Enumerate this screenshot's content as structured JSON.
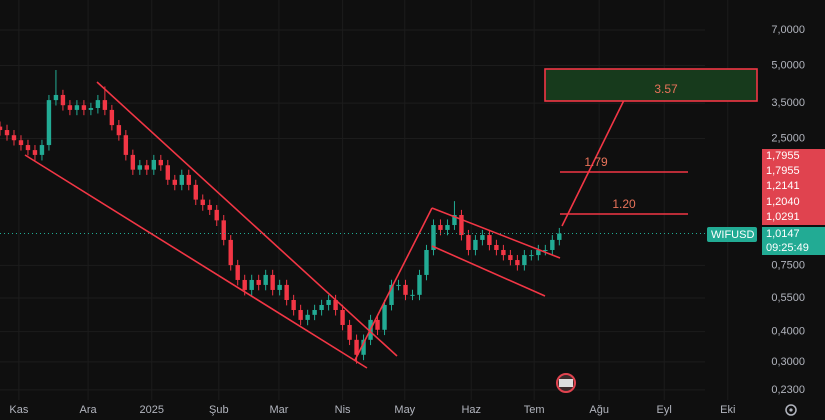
{
  "chart_data": {
    "type": "candlestick",
    "symbol": "WIFUSD",
    "log_scale": true,
    "grid": true,
    "up_color": "#22ab94",
    "down_color": "#f23645",
    "xlim": [
      0,
      118
    ],
    "xticks": [
      {
        "value": 2.7,
        "label": "Kas"
      },
      {
        "value": 12.6,
        "label": "Ara"
      },
      {
        "value": 21.7,
        "label": "2025"
      },
      {
        "value": 31.3,
        "label": "Şub"
      },
      {
        "value": 39.9,
        "label": "Mar"
      },
      {
        "value": 49,
        "label": "Nis"
      },
      {
        "value": 57.9,
        "label": "May"
      },
      {
        "value": 67.4,
        "label": "Haz"
      },
      {
        "value": 76.4,
        "label": "Tem"
      },
      {
        "value": 85.7,
        "label": "Ağu"
      },
      {
        "value": 95,
        "label": "Eyl"
      },
      {
        "value": 104.1,
        "label": "Eki"
      }
    ],
    "ylim": [
      0.209,
      9.31
    ],
    "yticks": [
      {
        "value": 7,
        "label": "7,0000"
      },
      {
        "value": 5,
        "label": "5,0000"
      },
      {
        "value": 3.5,
        "label": "3,5000"
      },
      {
        "value": 2.5,
        "label": "2,5000"
      },
      {
        "value": 0.75,
        "label": "0,7500"
      },
      {
        "value": 0.55,
        "label": "0,5500"
      },
      {
        "value": 0.4,
        "label": "0,4000"
      },
      {
        "value": 0.3,
        "label": "0,3000"
      },
      {
        "value": 0.23,
        "label": "0,2300"
      }
    ],
    "open": [
      2.8,
      2.71,
      2.58,
      2.46,
      2.35,
      2.24,
      2.14,
      2.35,
      3.6,
      3.78,
      3.43,
      3.28,
      3.43,
      3.28,
      3.34,
      3.6,
      3.28,
      2.84,
      2.58,
      2.14,
      1.86,
      1.94,
      1.86,
      2.04,
      1.94,
      1.69,
      1.61,
      1.77,
      1.61,
      1.4,
      1.33,
      1.27,
      1.15,
      0.955,
      0.752,
      0.653,
      0.594,
      0.653,
      0.623,
      0.685,
      0.594,
      0.623,
      0.54,
      0.491,
      0.447,
      0.469,
      0.491,
      0.515,
      0.54,
      0.491,
      0.426,
      0.37,
      0.321,
      0.37,
      0.447,
      0.407,
      0.515,
      0.623,
      0.623,
      0.567,
      0.567,
      0.685,
      0.868,
      1.1,
      1.05,
      1.1,
      1.21,
      1.0,
      0.868,
      0.955,
      1.0,
      0.91,
      0.868,
      0.827,
      0.789,
      0.752,
      0.827,
      0.827,
      0.868,
      0.868,
      0.955
    ],
    "high": [
      2.94,
      2.85,
      2.71,
      2.58,
      2.47,
      2.35,
      2.47,
      3.78,
      4.79,
      3.97,
      3.6,
      3.6,
      3.6,
      3.51,
      3.78,
      4.1,
      3.44,
      2.98,
      2.71,
      2.25,
      2.04,
      2.04,
      2.14,
      2.14,
      2.04,
      1.77,
      1.86,
      1.86,
      1.69,
      1.47,
      1.4,
      1.33,
      1.21,
      1.0,
      0.79,
      0.686,
      0.686,
      0.686,
      0.719,
      0.719,
      0.654,
      0.654,
      0.567,
      0.516,
      0.492,
      0.516,
      0.541,
      0.567,
      0.567,
      0.516,
      0.447,
      0.389,
      0.389,
      0.469,
      0.469,
      0.541,
      0.654,
      0.654,
      0.654,
      0.595,
      0.719,
      0.911,
      1.16,
      1.16,
      1.16,
      1.38,
      1.27,
      1.05,
      1.0,
      1.05,
      1.05,
      0.956,
      0.911,
      0.868,
      0.828,
      0.868,
      0.868,
      0.911,
      0.911,
      1.0,
      1.07
    ],
    "low": [
      2.57,
      2.45,
      2.34,
      2.23,
      2.13,
      2.03,
      2.03,
      2.23,
      3.42,
      3.26,
      3.12,
      3.12,
      3.12,
      3.12,
      3.17,
      3.12,
      2.7,
      2.45,
      2.03,
      1.77,
      1.77,
      1.77,
      1.77,
      1.84,
      1.61,
      1.53,
      1.53,
      1.53,
      1.33,
      1.26,
      1.21,
      1.09,
      0.907,
      0.714,
      0.62,
      0.564,
      0.564,
      0.592,
      0.592,
      0.564,
      0.564,
      0.513,
      0.466,
      0.425,
      0.425,
      0.446,
      0.466,
      0.489,
      0.466,
      0.405,
      0.352,
      0.295,
      0.305,
      0.352,
      0.387,
      0.387,
      0.489,
      0.592,
      0.539,
      0.539,
      0.539,
      0.651,
      0.825,
      0.998,
      0.998,
      1.05,
      0.95,
      0.825,
      0.825,
      0.907,
      0.865,
      0.825,
      0.786,
      0.75,
      0.714,
      0.714,
      0.786,
      0.786,
      0.825,
      0.825,
      0.907
    ],
    "close": [
      2.71,
      2.58,
      2.46,
      2.35,
      2.24,
      2.14,
      2.35,
      3.6,
      3.78,
      3.43,
      3.28,
      3.43,
      3.28,
      3.34,
      3.6,
      3.28,
      2.84,
      2.58,
      2.14,
      1.86,
      1.94,
      1.86,
      2.04,
      1.94,
      1.69,
      1.61,
      1.77,
      1.61,
      1.4,
      1.33,
      1.27,
      1.15,
      0.955,
      0.752,
      0.653,
      0.594,
      0.653,
      0.623,
      0.685,
      0.594,
      0.623,
      0.54,
      0.491,
      0.447,
      0.469,
      0.491,
      0.515,
      0.54,
      0.491,
      0.426,
      0.37,
      0.321,
      0.37,
      0.447,
      0.407,
      0.515,
      0.623,
      0.623,
      0.567,
      0.567,
      0.685,
      0.868,
      1.1,
      1.05,
      1.1,
      1.21,
      1.0,
      0.868,
      0.955,
      1.0,
      0.91,
      0.868,
      0.827,
      0.789,
      0.752,
      0.827,
      0.827,
      0.868,
      0.868,
      0.955,
      1.0147
    ],
    "last_price_label": "1,0147",
    "countdown": "09:25:49",
    "price_tags": [
      "1,7955",
      "1,7955",
      "1,2141",
      "1,2040",
      "1,0291"
    ],
    "annotations": [
      "3.57",
      "1.79",
      "1.20"
    ]
  }
}
